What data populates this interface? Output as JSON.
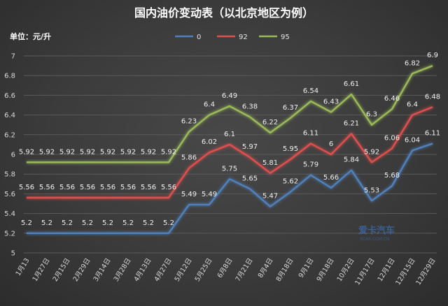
{
  "chart_data": {
    "type": "line",
    "title": "国内油价变动表（以北京地区为例）",
    "unit_label": "单位：元/升",
    "categories": [
      "1月13",
      "1月27日",
      "2月15日",
      "2月29日",
      "3月14日",
      "3月28日",
      "4月13日",
      "4月27日",
      "5月12日",
      "5月25日",
      "6月8日",
      "7月21日",
      "8月4日",
      "8月18日",
      "9月1日",
      "9月18日",
      "10月2日",
      "11月17日",
      "12月1日",
      "12月15日",
      "12月29日"
    ],
    "ylim": [
      5,
      7
    ],
    "yticks": [
      "5",
      "5.2",
      "5.4",
      "5.6",
      "5.8",
      "6",
      "6.2",
      "6.4",
      "6.6",
      "6.8",
      "7"
    ],
    "grid": true,
    "legend_position": "top-center",
    "series": [
      {
        "name": "0",
        "color": "#4f81bd",
        "values": [
          5.2,
          5.2,
          5.2,
          5.2,
          5.2,
          5.2,
          5.2,
          5.2,
          5.49,
          5.49,
          5.75,
          5.65,
          5.47,
          5.62,
          5.79,
          5.66,
          5.84,
          5.53,
          5.68,
          6.04,
          6.11
        ]
      },
      {
        "name": "92",
        "color": "#e0504d",
        "values": [
          5.56,
          5.56,
          5.56,
          5.56,
          5.56,
          5.56,
          5.56,
          5.56,
          5.86,
          6.02,
          6.1,
          5.97,
          5.81,
          5.95,
          6.11,
          6,
          6.21,
          5.92,
          6.06,
          6.4,
          6.48
        ]
      },
      {
        "name": "95",
        "color": "#9bbb59",
        "values": [
          5.92,
          5.92,
          5.92,
          5.92,
          5.92,
          5.92,
          5.92,
          5.92,
          6.23,
          6.4,
          6.49,
          6.38,
          6.22,
          6.37,
          6.54,
          6.43,
          6.61,
          6.3,
          6.46,
          6.82,
          6.9
        ]
      }
    ]
  },
  "watermark": {
    "main": "爱卡汽车",
    "sub": "XCAR.COM.CN"
  }
}
